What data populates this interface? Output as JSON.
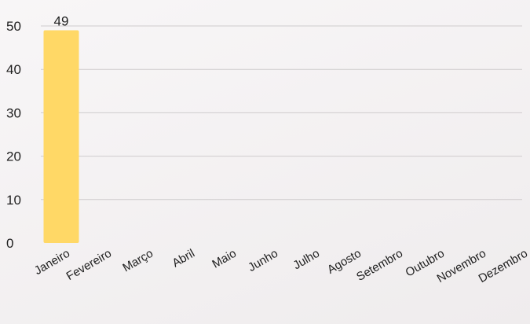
{
  "chart_data": {
    "type": "bar",
    "categories": [
      "Janeiro",
      "Fevereiro",
      "Março",
      "Abril",
      "Maio",
      "Junho",
      "Julho",
      "Agosto",
      "Setembro",
      "Outubro",
      "Novembro",
      "Dezembro"
    ],
    "values": [
      49,
      0,
      0,
      0,
      0,
      0,
      0,
      0,
      0,
      0,
      0,
      0
    ],
    "data_labels": [
      "49",
      "",
      "",
      "",
      "",
      "",
      "",
      "",
      "",
      "",
      "",
      ""
    ],
    "y_ticks": [
      0,
      10,
      20,
      30,
      40,
      50
    ],
    "ylim": [
      0,
      50
    ],
    "grid": true,
    "legend": "none",
    "title": "",
    "xlabel": "",
    "ylabel": "",
    "bar_color": "#ffd866",
    "grid_color": "#cfcccd",
    "text_color": "#1f1f1f",
    "background_color": "#f4f2f3"
  }
}
